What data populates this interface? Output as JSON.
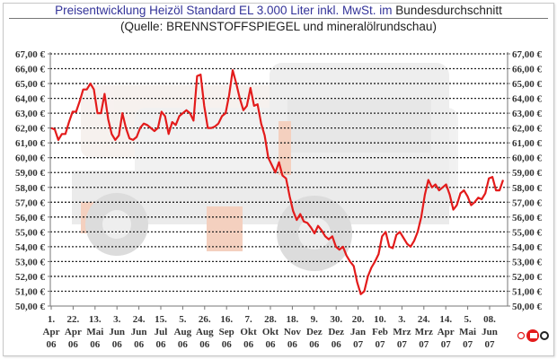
{
  "header": {
    "title_colored": "Preisentwicklung Heizöl Standard EL 3.000 Liter inkl. MwSt. im",
    "title_plain": "Bundesdurchschnitt",
    "subtitle": "(Quelle: BRENNSTOFFSPIEGEL und mineralölrundschau)"
  },
  "colors": {
    "line": "#e31b1b",
    "title": "#333399",
    "grid": "#222222"
  },
  "logo": {
    "text": "©"
  },
  "chart_data": {
    "type": "line",
    "title": "Preisentwicklung Heizöl Standard EL 3.000 Liter inkl. MwSt. im Bundesdurchschnitt",
    "subtitle": "(Quelle: BRENNSTOFFSPIEGEL und mineralölrundschau)",
    "xlabel": "",
    "ylabel": "",
    "ylim": [
      50,
      67
    ],
    "y_ticks": [
      "50,00 €",
      "51,00 €",
      "52,00 €",
      "53,00 €",
      "54,00 €",
      "55,00 €",
      "56,00 €",
      "57,00 €",
      "58,00 €",
      "59,00 €",
      "60,00 €",
      "61,00 €",
      "62,00 €",
      "63,00 €",
      "64,00 €",
      "65,00 €",
      "66,00 €",
      "67,00 €"
    ],
    "y_axis_both_sides": true,
    "grid": "horizontal dotted",
    "x_ticks": [
      [
        "1.",
        "Apr",
        "06"
      ],
      [
        "22.",
        "Apr",
        "06"
      ],
      [
        "13.",
        "Mai",
        "06"
      ],
      [
        "3.",
        "Jun",
        "06"
      ],
      [
        "24.",
        "Jun",
        "06"
      ],
      [
        "15.",
        "Jul",
        "06"
      ],
      [
        "5.",
        "Aug",
        "06"
      ],
      [
        "26.",
        "Aug",
        "06"
      ],
      [
        "16.",
        "Sep",
        "06"
      ],
      [
        "7.",
        "Okt",
        "06"
      ],
      [
        "28.",
        "Okt",
        "06"
      ],
      [
        "18.",
        "Nov",
        "06"
      ],
      [
        "9.",
        "Dez",
        "06"
      ],
      [
        "30.",
        "Dez",
        "06"
      ],
      [
        "20.",
        "Jan",
        "07"
      ],
      [
        "10.",
        "Feb",
        "07"
      ],
      [
        "3.",
        "Mrz",
        "07"
      ],
      [
        "24.",
        "Mrz",
        "07"
      ],
      [
        "14.",
        "Apr",
        "07"
      ],
      [
        "5.",
        "Mai",
        "07"
      ],
      [
        "08.",
        "Jun",
        "07"
      ]
    ],
    "series": [
      {
        "name": "Heizöl Standard EL 3.000 Liter",
        "values": [
          62.0,
          61.9,
          61.2,
          61.6,
          61.6,
          62.4,
          63.1,
          63.1,
          63.8,
          64.6,
          64.6,
          65.0,
          64.6,
          63.0,
          63.0,
          64.3,
          62.6,
          61.6,
          61.2,
          61.5,
          63.0,
          62.0,
          61.3,
          61.2,
          61.4,
          62.0,
          62.3,
          62.2,
          62.0,
          61.8,
          62.0,
          63.1,
          62.8,
          61.6,
          62.4,
          62.2,
          62.8,
          63.0,
          63.2,
          63.0,
          62.5,
          65.5,
          65.6,
          63.5,
          62.0,
          62.0,
          62.1,
          62.3,
          62.8,
          63.0,
          64.2,
          65.9,
          65.0,
          64.0,
          63.2,
          63.5,
          64.7,
          63.5,
          63.6,
          62.3,
          61.5,
          60.0,
          59.5,
          59.0,
          59.7,
          58.8,
          58.6,
          57.4,
          56.4,
          55.8,
          56.2,
          55.7,
          55.6,
          55.3,
          54.9,
          55.4,
          55.1,
          54.7,
          54.5,
          54.7,
          54.0,
          53.8,
          54.0,
          53.4,
          53.0,
          52.7,
          51.6,
          50.8,
          51.0,
          52.0,
          52.6,
          53.0,
          53.5,
          54.7,
          55.0,
          54.0,
          53.9,
          54.8,
          55.0,
          54.6,
          54.2,
          54.0,
          54.4,
          55.0,
          56.0,
          57.5,
          58.5,
          58.0,
          58.2,
          57.8,
          58.0,
          58.2,
          57.5,
          56.5,
          56.8,
          57.6,
          57.8,
          57.4,
          56.8,
          57.0,
          57.3,
          57.2,
          57.6,
          58.6,
          58.7,
          57.8,
          57.8,
          58.5
        ]
      }
    ]
  }
}
